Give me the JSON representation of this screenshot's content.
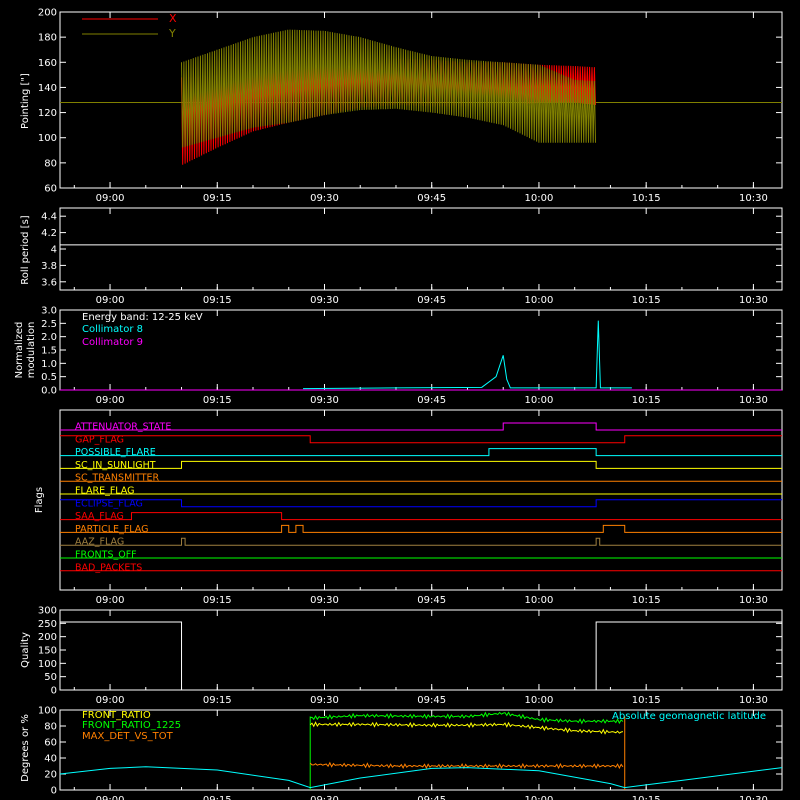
{
  "colors": {
    "background": "#000000",
    "axes": "#ffffff",
    "x_series": "#ff0000",
    "y_series": "#808000",
    "cyan": "#00ffff",
    "magenta": "#ff00ff",
    "yellow": "#ffff00",
    "orange": "#ff8000",
    "green": "#00ff00",
    "blue": "#0000ff",
    "red": "#ff0000",
    "olive": "#a08040"
  },
  "time_axis": {
    "start": "08:53",
    "end": "10:34",
    "tick_labels": [
      "09:00",
      "09:15",
      "09:30",
      "09:45",
      "10:00",
      "10:15",
      "10:30"
    ]
  },
  "chart_data": [
    {
      "id": "pointing",
      "type": "line",
      "ylabel": "Pointing [\"]",
      "ylim": [
        60,
        200
      ],
      "yticks": [
        60,
        80,
        100,
        120,
        140,
        160,
        180,
        200
      ],
      "legend": [
        "X",
        "Y"
      ],
      "legend_position": "top-left",
      "baseline_value": 128,
      "data_start": "09:10",
      "data_end": "10:08",
      "series": [
        {
          "name": "X",
          "color_key": "x_series",
          "upper": [
            [
              "09:10",
              148
            ],
            [
              "09:15",
              150
            ],
            [
              "09:20",
              152
            ],
            [
              "09:25",
              155
            ],
            [
              "09:30",
              158
            ],
            [
              "09:35",
              160
            ],
            [
              "09:40",
              163
            ],
            [
              "09:45",
              162
            ],
            [
              "09:50",
              160
            ],
            [
              "09:55",
              160
            ],
            [
              "10:00",
              158
            ],
            [
              "10:05",
              157
            ],
            [
              "10:08",
              156
            ]
          ],
          "lower": [
            [
              "09:10",
              78
            ],
            [
              "09:15",
              92
            ],
            [
              "09:20",
              105
            ],
            [
              "09:25",
              112
            ],
            [
              "09:30",
              118
            ],
            [
              "09:35",
              124
            ],
            [
              "09:40",
              126
            ],
            [
              "09:45",
              125
            ],
            [
              "09:50",
              125
            ],
            [
              "09:55",
              124
            ],
            [
              "10:00",
              128
            ],
            [
              "10:05",
              128
            ],
            [
              "10:08",
              126
            ]
          ]
        },
        {
          "name": "Y",
          "color_key": "y_series",
          "upper": [
            [
              "09:10",
              160
            ],
            [
              "09:15",
              170
            ],
            [
              "09:20",
              180
            ],
            [
              "09:25",
              186
            ],
            [
              "09:30",
              185
            ],
            [
              "09:35",
              180
            ],
            [
              "09:40",
              172
            ],
            [
              "09:45",
              165
            ],
            [
              "09:50",
              162
            ],
            [
              "09:55",
              160
            ],
            [
              "10:00",
              158
            ],
            [
              "10:05",
              146
            ],
            [
              "10:08",
              145
            ]
          ],
          "lower": [
            [
              "09:10",
              92
            ],
            [
              "09:15",
              100
            ],
            [
              "09:20",
              108
            ],
            [
              "09:25",
              112
            ],
            [
              "09:30",
              118
            ],
            [
              "09:35",
              122
            ],
            [
              "09:40",
              123
            ],
            [
              "09:45",
              120
            ],
            [
              "09:50",
              116
            ],
            [
              "09:55",
              110
            ],
            [
              "10:00",
              96
            ],
            [
              "10:05",
              96
            ],
            [
              "10:08",
              96
            ]
          ]
        }
      ]
    },
    {
      "id": "roll",
      "type": "line",
      "ylabel": "Roll period [s]",
      "ylim": [
        3.5,
        4.5
      ],
      "yticks": [
        3.6,
        3.8,
        4.0,
        4.2,
        4.4
      ],
      "series": [
        {
          "name": "",
          "color_key": "axes",
          "points": [
            [
              "08:53",
              4.05
            ],
            [
              "10:34",
              4.05
            ]
          ]
        }
      ]
    },
    {
      "id": "modulation",
      "type": "line",
      "ylabel": "Normalized modulation",
      "ylim": [
        0,
        3
      ],
      "yticks": [
        "0.0",
        "0.5",
        "1.0",
        "1.5",
        "2.0",
        "2.5",
        "3.0"
      ],
      "annotation": "Energy band: 12-25 keV",
      "legend": [
        "Collimator 8",
        "Collimator 9"
      ],
      "series": [
        {
          "name": "Collimator 8",
          "color_key": "cyan",
          "points": [
            [
              "09:27",
              0.05
            ],
            [
              "09:40",
              0.08
            ],
            [
              "09:52",
              0.1
            ],
            [
              "09:54",
              0.5
            ],
            [
              "09:55",
              1.3
            ],
            [
              "09:55.5",
              0.4
            ],
            [
              "09:56",
              0.08
            ],
            [
              "10:08",
              0.08
            ],
            [
              "10:08.3",
              2.6
            ],
            [
              "10:08.6",
              0.08
            ],
            [
              "10:13",
              0.08
            ]
          ]
        },
        {
          "name": "Collimator 9",
          "color_key": "magenta",
          "points": [
            [
              "08:53",
              0.0
            ],
            [
              "10:34",
              0.0
            ]
          ]
        }
      ]
    },
    {
      "id": "flags",
      "type": "line",
      "ylabel": "Flags",
      "flags": [
        {
          "name": "ATTENUATOR_STATE",
          "color_key": "magenta",
          "steps": [
            [
              "08:53",
              0
            ],
            [
              "09:55",
              1
            ],
            [
              "10:08",
              0
            ]
          ]
        },
        {
          "name": "GAP_FLAG",
          "color_key": "red",
          "steps": [
            [
              "08:53",
              1
            ],
            [
              "09:28",
              0
            ],
            [
              "10:12",
              1
            ]
          ]
        },
        {
          "name": "POSSIBLE_FLARE",
          "color_key": "cyan",
          "steps": [
            [
              "08:53",
              0
            ],
            [
              "09:53",
              1
            ],
            [
              "10:08",
              0
            ]
          ]
        },
        {
          "name": "SC_IN_SUNLIGHT",
          "color_key": "yellow",
          "steps": [
            [
              "08:53",
              0
            ],
            [
              "09:10",
              1
            ],
            [
              "10:08",
              0
            ]
          ]
        },
        {
          "name": "SC_TRANSMITTER",
          "color_key": "orange",
          "steps": [
            [
              "08:53",
              0
            ],
            [
              "10:34",
              0
            ]
          ]
        },
        {
          "name": "FLARE_FLAG",
          "color_key": "yellow",
          "steps": [
            [
              "08:53",
              0
            ],
            [
              "10:34",
              0
            ]
          ]
        },
        {
          "name": "ECLIPSE_FLAG",
          "color_key": "blue",
          "steps": [
            [
              "08:53",
              1
            ],
            [
              "09:10",
              0
            ],
            [
              "10:08",
              1
            ]
          ]
        },
        {
          "name": "SAA_FLAG",
          "color_key": "red",
          "steps": [
            [
              "08:53",
              0
            ],
            [
              "09:03",
              1
            ],
            [
              "09:24",
              0
            ]
          ]
        },
        {
          "name": "PARTICLE_FLAG",
          "color_key": "orange",
          "steps": [
            [
              "08:53",
              0
            ],
            [
              "09:24",
              1
            ],
            [
              "09:25",
              0
            ],
            [
              "09:26",
              1
            ],
            [
              "09:27",
              0
            ],
            [
              "10:09",
              1
            ],
            [
              "10:12",
              0
            ]
          ]
        },
        {
          "name": "AAZ_FLAG",
          "color_key": "olive",
          "steps": [
            [
              "08:53",
              0
            ],
            [
              "09:10",
              1
            ],
            [
              "09:10.5",
              0
            ],
            [
              "10:08",
              1
            ],
            [
              "10:08.5",
              0
            ]
          ]
        },
        {
          "name": "FRONTS_OFF",
          "color_key": "green",
          "steps": [
            [
              "08:53",
              0
            ],
            [
              "10:34",
              0
            ]
          ]
        },
        {
          "name": "BAD_PACKETS",
          "color_key": "red",
          "steps": [
            [
              "08:53",
              0
            ],
            [
              "10:34",
              0
            ]
          ]
        }
      ]
    },
    {
      "id": "quality",
      "type": "line",
      "ylabel": "Quality",
      "ylim": [
        0,
        300
      ],
      "yticks": [
        0,
        50,
        100,
        150,
        200,
        250,
        300
      ],
      "series": [
        {
          "name": "",
          "color_key": "axes",
          "points": [
            [
              "08:53",
              255
            ],
            [
              "09:10",
              255
            ],
            [
              "09:10",
              0
            ],
            [
              "10:08",
              0
            ],
            [
              "10:08",
              255
            ],
            [
              "10:34",
              255
            ]
          ]
        }
      ]
    },
    {
      "id": "ratios",
      "type": "line",
      "ylabel": "Degrees or %",
      "ylim": [
        0,
        100
      ],
      "yticks": [
        0,
        20,
        40,
        60,
        80,
        100
      ],
      "legend": [
        "FRONT_RATIO",
        "FRONT_RATIO_1225",
        "MAX_DET_VS_TOT"
      ],
      "annotation": "Absolute geomagnetic latitude",
      "series": [
        {
          "name": "FRONT_RATIO",
          "color_key": "yellow",
          "points": [
            [
              "09:28",
              82
            ],
            [
              "09:35",
              82
            ],
            [
              "09:45",
              81
            ],
            [
              "09:50",
              81
            ],
            [
              "09:55",
              82
            ],
            [
              "10:00",
              78
            ],
            [
              "10:05",
              74
            ],
            [
              "10:12",
              72
            ]
          ]
        },
        {
          "name": "FRONT_RATIO_1225",
          "color_key": "green",
          "points": [
            [
              "09:28",
              90
            ],
            [
              "09:35",
              93
            ],
            [
              "09:45",
              92
            ],
            [
              "09:50",
              92
            ],
            [
              "09:55",
              96
            ],
            [
              "10:00",
              88
            ],
            [
              "10:05",
              86
            ],
            [
              "10:12",
              86
            ]
          ]
        },
        {
          "name": "MAX_DET_VS_TOT",
          "color_key": "orange",
          "points": [
            [
              "09:28",
              32
            ],
            [
              "09:40",
              30
            ],
            [
              "09:50",
              30
            ],
            [
              "10:00",
              30
            ],
            [
              "10:12",
              30
            ]
          ]
        },
        {
          "name": "Absolute geomagnetic latitude",
          "color_key": "cyan",
          "points": [
            [
              "08:53",
              20
            ],
            [
              "09:00",
              27
            ],
            [
              "09:05",
              29
            ],
            [
              "09:15",
              25
            ],
            [
              "09:25",
              12
            ],
            [
              "09:28",
              3
            ],
            [
              "09:35",
              15
            ],
            [
              "09:45",
              27
            ],
            [
              "09:50",
              28
            ],
            [
              "10:00",
              24
            ],
            [
              "10:10",
              8
            ],
            [
              "10:12",
              3
            ],
            [
              "10:20",
              12
            ],
            [
              "10:34",
              28
            ]
          ]
        }
      ]
    }
  ]
}
